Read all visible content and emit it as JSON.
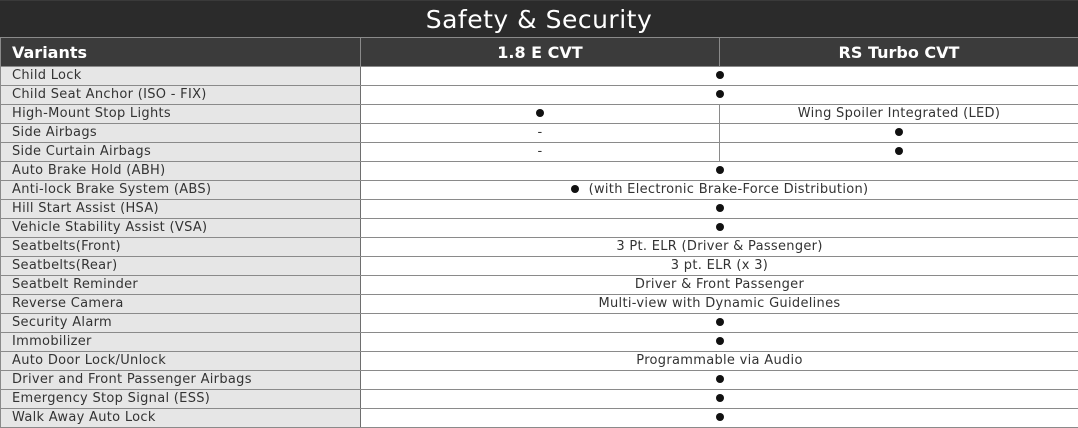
{
  "title": "Safety & Security",
  "header": {
    "feature_label": "Variants",
    "variant_1": "1.8 E CVT",
    "variant_2": "RS Turbo CVT"
  },
  "rows": [
    {
      "feature": "Child Lock",
      "type": "span",
      "value": "",
      "dot": true
    },
    {
      "feature": "Child Seat Anchor (ISO - FIX)",
      "type": "span",
      "value": "",
      "dot": true
    },
    {
      "feature": "High-Mount Stop Lights",
      "type": "split",
      "v1": "",
      "v1_dot": true,
      "v2": "Wing Spoiler Integrated (LED)",
      "v2_dot": false
    },
    {
      "feature": "Side Airbags",
      "type": "split",
      "v1": "-",
      "v1_dot": false,
      "v2": "",
      "v2_dot": true
    },
    {
      "feature": "Side Curtain Airbags",
      "type": "split",
      "v1": "-",
      "v1_dot": false,
      "v2": "",
      "v2_dot": true
    },
    {
      "feature": "Auto Brake Hold (ABH)",
      "type": "span",
      "value": "",
      "dot": true
    },
    {
      "feature": "Anti-lock Brake System (ABS)",
      "type": "span",
      "value": "(with Electronic Brake-Force Distribution)",
      "dot": true
    },
    {
      "feature": "Hill Start Assist (HSA)",
      "type": "span",
      "value": "",
      "dot": true
    },
    {
      "feature": "Vehicle Stability Assist (VSA)",
      "type": "span",
      "value": "",
      "dot": true
    },
    {
      "feature": "Seatbelts(Front)",
      "type": "span",
      "value": "3 Pt. ELR (Driver & Passenger)",
      "dot": false
    },
    {
      "feature": "Seatbelts(Rear)",
      "type": "span",
      "value": "3 pt. ELR (x 3)",
      "dot": false
    },
    {
      "feature": "Seatbelt Reminder",
      "type": "span",
      "value": "Driver & Front Passenger",
      "dot": false
    },
    {
      "feature": "Reverse Camera",
      "type": "span",
      "value": "Multi-view with Dynamic Guidelines",
      "dot": false
    },
    {
      "feature": "Security Alarm",
      "type": "span",
      "value": "",
      "dot": true
    },
    {
      "feature": "Immobilizer",
      "type": "span",
      "value": "",
      "dot": true
    },
    {
      "feature": "Auto Door Lock/Unlock",
      "type": "span",
      "value": "Programmable via Audio",
      "dot": false
    },
    {
      "feature": "Driver and Front Passenger Airbags",
      "type": "span",
      "value": "",
      "dot": true
    },
    {
      "feature": "Emergency Stop Signal (ESS)",
      "type": "span",
      "value": "",
      "dot": true
    },
    {
      "feature": "Walk Away Auto Lock",
      "type": "span",
      "value": "",
      "dot": true
    }
  ]
}
